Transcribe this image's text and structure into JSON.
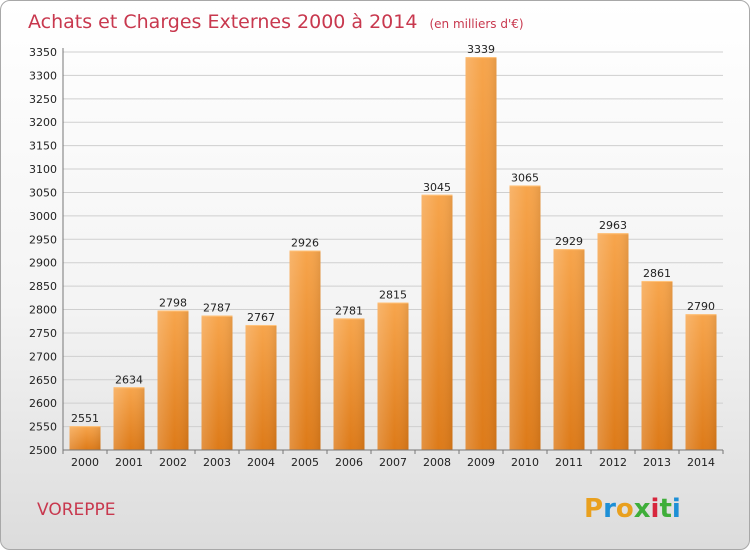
{
  "chart_data": {
    "type": "bar",
    "title": "Achats et Charges Externes 2000 à 2014",
    "subtitle": "(en milliers d'€)",
    "categories": [
      "2000",
      "2001",
      "2002",
      "2003",
      "2004",
      "2005",
      "2006",
      "2007",
      "2008",
      "2009",
      "2010",
      "2011",
      "2012",
      "2013",
      "2014"
    ],
    "values": [
      2551,
      2634,
      2798,
      2787,
      2767,
      2926,
      2781,
      2815,
      3045,
      3339,
      3065,
      2929,
      2963,
      2861,
      2790
    ],
    "ylim": [
      2500,
      3350
    ],
    "yticks": [
      2500,
      2550,
      2600,
      2650,
      2700,
      2750,
      2800,
      2850,
      2900,
      2950,
      3000,
      3050,
      3100,
      3150,
      3200,
      3250,
      3300,
      3350
    ],
    "grid": true,
    "bar_color_top": "#f7a54c",
    "bar_color_bottom": "#dd7a18"
  },
  "footer": {
    "commune": "VOREPPE",
    "logo": [
      "P",
      "r",
      "o",
      "x",
      "i",
      "t",
      "i"
    ],
    "logo_colors": [
      "#e9a01e",
      "#1d8fd6",
      "#e9a01e",
      "#3fae3a",
      "#d7263d",
      "#3fae3a",
      "#1d8fd6"
    ]
  }
}
